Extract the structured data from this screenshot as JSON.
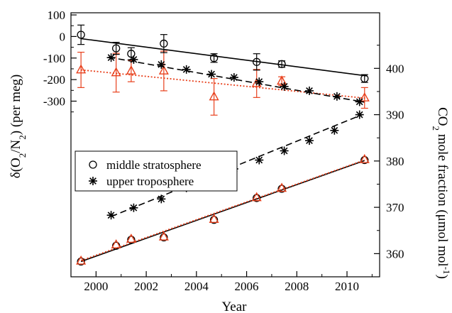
{
  "chart_data": {
    "type": "scatter",
    "xlabel": "Year",
    "ylabel_left": {
      "main": "δ(O",
      "sub1": "2",
      "mid": "/N",
      "sub2": "2",
      "tail": ")  (per meg)"
    },
    "ylabel_right": {
      "main": "CO",
      "sub": "2",
      "mid": " mole fraction (μmol mol",
      "sup": "-1",
      "tail": ")"
    },
    "xlim": [
      1999,
      2011.3
    ],
    "ylim_left": [
      -1115,
      110
    ],
    "ylim_right": [
      355,
      412
    ],
    "x_ticks": [
      "2000",
      "2002",
      "2004",
      "2006",
      "2008",
      "2010"
    ],
    "left_ticks": [
      "100",
      "0",
      "-100",
      "-200",
      "-300"
    ],
    "right_ticks": [
      "360",
      "370",
      "380",
      "390",
      "400"
    ],
    "colors": {
      "black": "#000000",
      "red": "#e8401c"
    },
    "legend": {
      "placement": "middle-left",
      "entries": [
        {
          "label": "middle stratosphere",
          "marker": "circle"
        },
        {
          "label": "upper troposphere",
          "marker": "star"
        }
      ]
    },
    "o2n2_stratosphere": {
      "marker": "circle",
      "color": "#000000",
      "points": [
        {
          "x": 1999.4,
          "y": 8,
          "err": 45
        },
        {
          "x": 2000.8,
          "y": -55,
          "err": 28
        },
        {
          "x": 2001.4,
          "y": -80,
          "err": 28
        },
        {
          "x": 2002.7,
          "y": -33,
          "err": 42
        },
        {
          "x": 2004.7,
          "y": -100,
          "err": 20
        },
        {
          "x": 2006.4,
          "y": -118,
          "err": 38
        },
        {
          "x": 2007.4,
          "y": -128,
          "err": 15
        },
        {
          "x": 2010.7,
          "y": -195,
          "err": 18
        }
      ],
      "fit": {
        "x": [
          1999.4,
          2010.8
        ],
        "y": [
          -10,
          -183
        ],
        "style": "solid"
      }
    },
    "o2n2_stratosphere_red": {
      "marker": "triangle",
      "color": "#e8401c",
      "points": [
        {
          "x": 1999.4,
          "y": -155,
          "err": 82
        },
        {
          "x": 2000.8,
          "y": -168,
          "err": 90
        },
        {
          "x": 2001.4,
          "y": -160,
          "err": 50
        },
        {
          "x": 2002.7,
          "y": -160,
          "err": 92
        },
        {
          "x": 2004.7,
          "y": -280,
          "err": 85
        },
        {
          "x": 2006.4,
          "y": -218,
          "err": 65
        },
        {
          "x": 2007.4,
          "y": -207,
          "err": 20
        },
        {
          "x": 2010.7,
          "y": -285,
          "err": 48
        }
      ],
      "fit": {
        "x": [
          1999.4,
          2010.8
        ],
        "y": [
          -155,
          -287
        ],
        "style": "dotted"
      }
    },
    "o2n2_troposphere": {
      "marker": "star",
      "color": "#000000",
      "points": [
        {
          "x": 2000.6,
          "y": -98
        },
        {
          "x": 2001.5,
          "y": -107
        },
        {
          "x": 2002.6,
          "y": -130
        },
        {
          "x": 2003.6,
          "y": -153
        },
        {
          "x": 2004.6,
          "y": -175
        },
        {
          "x": 2005.5,
          "y": -190
        },
        {
          "x": 2006.5,
          "y": -210
        },
        {
          "x": 2007.5,
          "y": -232
        },
        {
          "x": 2008.5,
          "y": -252
        },
        {
          "x": 2009.6,
          "y": -278
        },
        {
          "x": 2010.5,
          "y": -303
        }
      ],
      "fit": {
        "x": [
          2000.5,
          2010.7
        ],
        "y": [
          -96,
          -305
        ],
        "style": "dashed"
      }
    },
    "co2_stratosphere": {
      "marker": "circle",
      "color": "#000000",
      "points": [
        {
          "x": 1999.4,
          "y": 358.3
        },
        {
          "x": 2000.8,
          "y": 361.7
        },
        {
          "x": 2001.4,
          "y": 363.0
        },
        {
          "x": 2002.7,
          "y": 363.5
        },
        {
          "x": 2004.7,
          "y": 367.3
        },
        {
          "x": 2006.4,
          "y": 372.0
        },
        {
          "x": 2007.4,
          "y": 374.0
        },
        {
          "x": 2010.7,
          "y": 380.2
        }
      ],
      "fit": {
        "x": [
          1999.4,
          2010.7
        ],
        "y": [
          358.3,
          380.1
        ],
        "style": "solid"
      }
    },
    "co2_stratosphere_red": {
      "marker": "triangle",
      "color": "#e8401c",
      "points": [
        {
          "x": 1999.4,
          "y": 358.4
        },
        {
          "x": 2000.8,
          "y": 361.9
        },
        {
          "x": 2001.4,
          "y": 363.1
        },
        {
          "x": 2002.7,
          "y": 363.6
        },
        {
          "x": 2004.7,
          "y": 367.4
        },
        {
          "x": 2006.4,
          "y": 372.1
        },
        {
          "x": 2007.4,
          "y": 374.1
        },
        {
          "x": 2010.7,
          "y": 380.3
        }
      ],
      "fit": {
        "x": [
          1999.4,
          2010.7
        ],
        "y": [
          358.5,
          380.2
        ],
        "style": "dotted"
      }
    },
    "co2_troposphere": {
      "marker": "star",
      "color": "#000000",
      "points": [
        {
          "x": 2000.6,
          "y": 368.3
        },
        {
          "x": 2001.5,
          "y": 369.9
        },
        {
          "x": 2002.6,
          "y": 371.8
        },
        {
          "x": 2003.6,
          "y": 374.2
        },
        {
          "x": 2004.6,
          "y": 376.3
        },
        {
          "x": 2005.5,
          "y": 378.3
        },
        {
          "x": 2006.5,
          "y": 380.2
        },
        {
          "x": 2007.5,
          "y": 382.2
        },
        {
          "x": 2008.5,
          "y": 384.4
        },
        {
          "x": 2009.5,
          "y": 386.6
        },
        {
          "x": 2010.5,
          "y": 390.0
        }
      ],
      "fit": {
        "x": [
          2000.6,
          2010.6
        ],
        "y": [
          368.0,
          390.0
        ],
        "style": "dashed"
      }
    }
  }
}
